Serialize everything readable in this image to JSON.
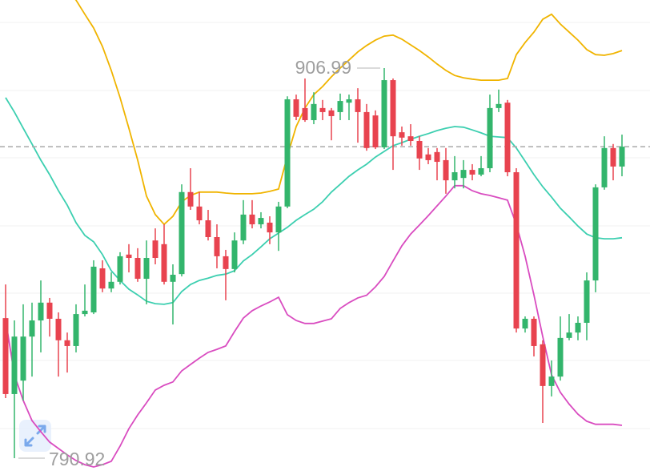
{
  "chart_data": {
    "type": "candlestick",
    "open": [
      832.6,
      810.0,
      814.0,
      827.1,
      831.9,
      837.2,
      832.4,
      826.0,
      824.3,
      833.8,
      834.3,
      847.4,
      841.4,
      843.4,
      851.5,
      850.5,
      844.3,
      855.7,
      854.6,
      843.4,
      845.7,
      870.1,
      865.8,
      861.7,
      856.7,
      851.0,
      847.2,
      855.7,
      863.4,
      860.5,
      861.0,
      858.1,
      865.8,
      897.7,
      895.1,
      891.5,
      895.1,
      894.4,
      893.9,
      896.7,
      897.7,
      893.9,
      892.9,
      883.4,
      903.4,
      887.9,
      886.7,
      885.3,
      881.3,
      882.0,
      879.6,
      873.6,
      874.3,
      876.7,
      875.3,
      877.2,
      895.1,
      896.7,
      876.0,
      829.5,
      832.4,
      824.8,
      812.4,
      815.2,
      826.7,
      828.3,
      831.2,
      843.8,
      871.5,
      883.2,
      877.7
    ],
    "high": [
      842.6,
      831.9,
      836.7,
      837.2,
      843.8,
      838.6,
      834.3,
      828.3,
      836.7,
      842.6,
      849.8,
      849.8,
      846.2,
      852.2,
      854.6,
      853.4,
      855.7,
      859.3,
      860.5,
      848.6,
      872.4,
      877.2,
      870.1,
      864.8,
      860.5,
      852.9,
      858.1,
      867.7,
      867.7,
      864.1,
      862.9,
      867.2,
      898.6,
      899.1,
      903.9,
      899.8,
      897.5,
      895.1,
      899.4,
      899.1,
      901.0,
      896.3,
      894.4,
      906.99,
      903.9,
      889.6,
      890.3,
      886.7,
      883.2,
      883.2,
      883.2,
      880.8,
      879.6,
      878.4,
      880.8,
      899.1,
      900.6,
      897.5,
      877.2,
      833.1,
      833.1,
      826.0,
      820.0,
      833.1,
      833.8,
      833.1,
      846.2,
      872.4,
      886.7,
      884.4,
      887.2
    ],
    "low": [
      808.8,
      790.92,
      808.1,
      815.2,
      822.4,
      827.1,
      815.2,
      816.4,
      822.4,
      833.1,
      833.8,
      840.3,
      840.3,
      842.6,
      846.2,
      843.4,
      836.7,
      848.6,
      842.6,
      830.7,
      845.0,
      864.8,
      860.5,
      855.7,
      847.4,
      837.9,
      846.2,
      854.6,
      859.3,
      859.3,
      854.6,
      852.6,
      865.3,
      891.5,
      891.0,
      890.3,
      891.5,
      885.5,
      891.5,
      891.5,
      884.8,
      882.4,
      882.9,
      882.9,
      876.7,
      883.9,
      883.9,
      876.7,
      878.4,
      873.6,
      869.6,
      871.2,
      871.2,
      873.6,
      874.8,
      876.0,
      893.9,
      874.8,
      828.3,
      828.3,
      821.2,
      801.4,
      809.3,
      814.0,
      826.0,
      826.0,
      826.0,
      840.3,
      870.8,
      873.6,
      874.8
    ],
    "close": [
      810.0,
      827.1,
      827.1,
      831.9,
      837.2,
      832.4,
      826.0,
      824.3,
      833.8,
      834.8,
      847.9,
      841.4,
      843.4,
      851.0,
      850.5,
      844.3,
      850.5,
      850.5,
      843.4,
      845.5,
      870.1,
      865.8,
      861.7,
      856.7,
      851.0,
      847.2,
      855.7,
      863.4,
      860.5,
      862.4,
      858.1,
      865.8,
      897.7,
      892.5,
      891.5,
      896.3,
      893.9,
      892.7,
      897.2,
      897.7,
      893.9,
      883.2,
      883.4,
      903.4,
      886.7,
      886.3,
      885.3,
      880.1,
      879.6,
      879.1,
      873.6,
      876.0,
      876.7,
      875.3,
      877.2,
      895.1,
      896.3,
      876.0,
      829.5,
      832.4,
      824.3,
      812.4,
      815.2,
      826.7,
      828.3,
      831.2,
      843.8,
      871.5,
      883.2,
      877.7,
      883.6
    ],
    "up_color": "#33b56c",
    "down_color": "#e8434f",
    "series": [
      {
        "color": "#f0b400",
        "values": [
          953.5,
          951.1,
          948.2,
          945.1,
          941.1,
          936.8,
          933.2,
          930.1,
          927.2,
          923.0,
          918.9,
          913.4,
          906.3,
          898.2,
          889.1,
          879.6,
          868.9,
          863.4,
          860.5,
          862.9,
          867.2,
          869.1,
          870.1,
          870.1,
          870.1,
          869.8,
          869.6,
          869.6,
          869.6,
          869.8,
          870.3,
          871.0,
          880.8,
          889.6,
          895.1,
          899.1,
          901.5,
          904.4,
          907.0,
          909.4,
          911.8,
          913.7,
          915.3,
          916.5,
          916.8,
          915.6,
          913.9,
          912.2,
          910.3,
          908.2,
          906.3,
          904.8,
          904.1,
          903.7,
          903.4,
          903.4,
          903.4,
          903.9,
          911.0,
          914.6,
          917.7,
          921.5,
          923.0,
          920.1,
          917.7,
          915.3,
          912.5,
          911.0,
          910.8,
          911.3,
          912.2
        ]
      },
      {
        "color": "#3ccfb0",
        "values": [
          898.2,
          893.9,
          889.1,
          884.4,
          879.6,
          875.3,
          870.5,
          866.2,
          861.0,
          857.2,
          855.3,
          851.5,
          846.7,
          843.8,
          841.2,
          839.5,
          837.6,
          836.9,
          836.7,
          837.2,
          840.5,
          842.6,
          843.8,
          844.5,
          845.3,
          845.7,
          846.7,
          849.6,
          851.5,
          853.8,
          856.2,
          857.9,
          859.6,
          861.7,
          863.4,
          865.0,
          867.2,
          870.1,
          872.4,
          874.8,
          876.7,
          878.4,
          880.5,
          882.2,
          883.9,
          884.8,
          885.8,
          886.7,
          887.5,
          888.4,
          889.1,
          889.6,
          889.4,
          888.6,
          887.7,
          886.7,
          886.5,
          886.3,
          883.2,
          879.3,
          875.3,
          871.7,
          868.6,
          865.3,
          862.7,
          860.0,
          857.6,
          856.5,
          856.2,
          856.2,
          856.5
        ]
      },
      {
        "color": "#d94cc0",
        "values": [
          832.1,
          815.7,
          808.1,
          802.1,
          798.8,
          795.7,
          793.8,
          791.9,
          790.2,
          789.0,
          788.3,
          789.0,
          790.0,
          794.5,
          799.7,
          803.8,
          807.4,
          811.2,
          812.6,
          813.6,
          816.9,
          818.8,
          820.7,
          822.4,
          823.3,
          824.3,
          828.6,
          832.6,
          834.8,
          836.2,
          837.4,
          838.8,
          833.6,
          831.9,
          831.0,
          831.0,
          831.7,
          832.4,
          835.5,
          837.2,
          838.6,
          839.4,
          841.9,
          845.0,
          849.6,
          854.1,
          857.6,
          860.3,
          863.1,
          866.0,
          868.9,
          872.0,
          872.0,
          870.5,
          869.6,
          869.1,
          868.4,
          867.7,
          860.5,
          851.0,
          839.5,
          827.1,
          815.7,
          810.5,
          807.0,
          804.0,
          801.9,
          801.0,
          801.0,
          801.0,
          800.7
        ]
      }
    ],
    "price_line": 883.6,
    "high_label": 906.99,
    "low_label": 790.92
  }
}
